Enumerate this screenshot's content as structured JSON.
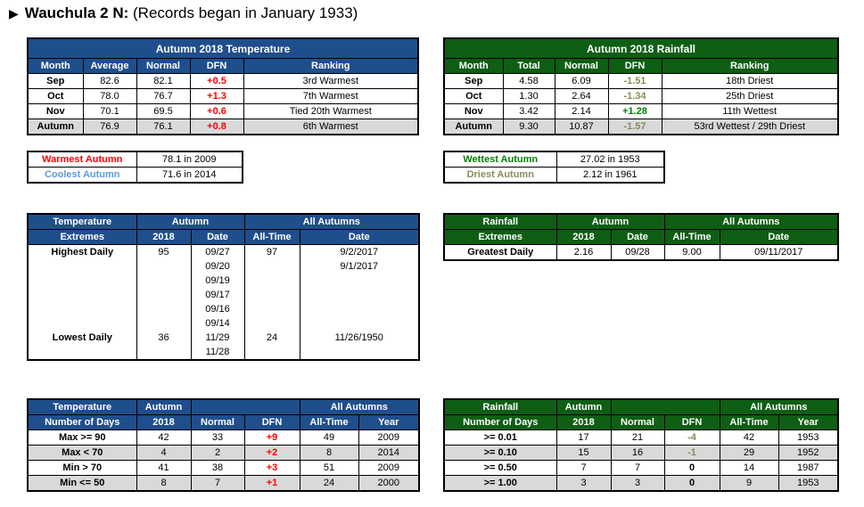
{
  "title": {
    "bold": "Wauchula 2 N:",
    "rest": "(Records began in January 1933)"
  },
  "temp_monthly": {
    "caption": "Autumn 2018 Temperature",
    "headers": [
      "Month",
      "Average",
      "Normal",
      "DFN",
      "Ranking"
    ],
    "rows": [
      [
        "Sep",
        "82.6",
        "82.1",
        "+0.5",
        "3rd Warmest"
      ],
      [
        "Oct",
        "78.0",
        "76.7",
        "+1.3",
        "7th Warmest"
      ],
      [
        "Nov",
        "70.1",
        "69.5",
        "+0.6",
        "Tied 20th Warmest"
      ],
      [
        "Autumn",
        "76.9",
        "76.1",
        "+0.8",
        "6th Warmest"
      ]
    ]
  },
  "rain_monthly": {
    "caption": "Autumn 2018 Rainfall",
    "headers": [
      "Month",
      "Total",
      "Normal",
      "DFN",
      "Ranking"
    ],
    "rows": [
      [
        "Sep",
        "4.58",
        "6.09",
        "-1.51",
        "18th Driest"
      ],
      [
        "Oct",
        "1.30",
        "2.64",
        "-1.34",
        "25th Driest"
      ],
      [
        "Nov",
        "3.42",
        "2.14",
        "+1.28",
        "11th Wettest"
      ],
      [
        "Autumn",
        "9.30",
        "10.87",
        "-1.57",
        "53rd Wettest / 29th Driest"
      ]
    ]
  },
  "temp_records": [
    {
      "label": "Warmest Autumn",
      "value": "78.1 in 2009"
    },
    {
      "label": "Coolest Autumn",
      "value": "71.6 in 2014"
    }
  ],
  "rain_records": [
    {
      "label": "Wettest Autumn",
      "value": "27.02 in 1953"
    },
    {
      "label": "Driest Autumn",
      "value": "2.12 in 1961"
    }
  ],
  "temp_extremes": {
    "h1": [
      "Temperature",
      "Autumn",
      "All Autumns"
    ],
    "h2": [
      "Extremes",
      "2018",
      "Date",
      "All-Time",
      "Date"
    ],
    "highest": {
      "label": "Highest Daily",
      "value": "95",
      "dates": [
        "09/27",
        "09/20",
        "09/19",
        "09/17",
        "09/16",
        "09/14"
      ],
      "alltime": "97",
      "alldates": [
        "9/2/2017",
        "9/1/2017"
      ]
    },
    "lowest": {
      "label": "Lowest Daily",
      "value": "36",
      "dates": [
        "11/29",
        "11/28"
      ],
      "alltime": "24",
      "alldates": [
        "11/26/1950"
      ]
    }
  },
  "rain_extremes": {
    "h1": [
      "Rainfall",
      "Autumn",
      "All Autumns"
    ],
    "h2": [
      "Extremes",
      "2018",
      "Date",
      "All-Time",
      "Date"
    ],
    "row": [
      "Greatest Daily",
      "2.16",
      "09/28",
      "9.00",
      "09/11/2017"
    ]
  },
  "temp_days": {
    "h1": [
      "Temperature",
      "Autumn",
      "All Autumns"
    ],
    "h2": [
      "Number of Days",
      "2018",
      "Normal",
      "DFN",
      "All-Time",
      "Year"
    ],
    "rows": [
      [
        "Max >= 90",
        "42",
        "33",
        "+9",
        "49",
        "2009"
      ],
      [
        "Max < 70",
        "4",
        "2",
        "+2",
        "8",
        "2014"
      ],
      [
        "Min > 70",
        "41",
        "38",
        "+3",
        "51",
        "2009"
      ],
      [
        "Min <= 50",
        "8",
        "7",
        "+1",
        "24",
        "2000"
      ]
    ]
  },
  "rain_days": {
    "h1": [
      "Rainfall",
      "Autumn",
      "All Autumns"
    ],
    "h2": [
      "Number of Days",
      "2018",
      "Normal",
      "DFN",
      "All-Time",
      "Year"
    ],
    "rows": [
      [
        ">= 0.01",
        "17",
        "21",
        "-4",
        "42",
        "1953"
      ],
      [
        ">= 0.10",
        "15",
        "16",
        "-1",
        "29",
        "1952"
      ],
      [
        ">= 0.50",
        "7",
        "7",
        "0",
        "14",
        "1987"
      ],
      [
        ">= 1.00",
        "3",
        "3",
        "0",
        "9",
        "1953"
      ]
    ]
  },
  "colors": {
    "temp_header": "#1f4e8c",
    "rain_header": "#0e5e14",
    "positive_dfn": "#ff0000",
    "negative_dfn": "#8a8a5a",
    "wet_dfn": "#008000"
  }
}
